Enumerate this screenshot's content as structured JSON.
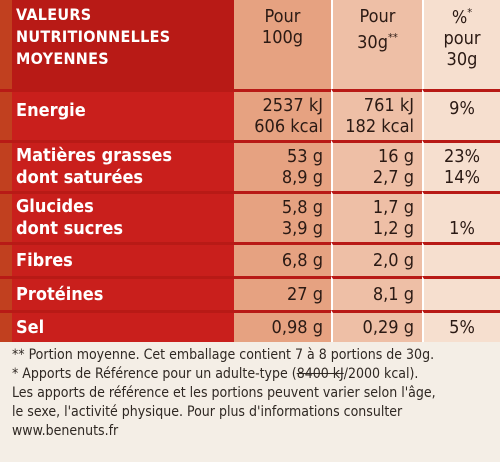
{
  "header": {
    "label_lines": [
      "VALEURS",
      "NUTRITIONNELLES",
      "MOYENNES"
    ],
    "col1": [
      "Pour",
      "100g"
    ],
    "col2": [
      "Pour",
      "30g",
      "**"
    ],
    "col3": [
      "%",
      "*",
      "pour",
      "30g"
    ]
  },
  "rows": [
    {
      "labels": [
        "Energie"
      ],
      "col1": [
        "2537 kJ",
        "606 kcal"
      ],
      "col2": [
        "761 kJ",
        "182 kcal"
      ],
      "col3": [
        "9%"
      ]
    },
    {
      "labels": [
        "Matières grasses",
        "dont saturées"
      ],
      "col1": [
        "53 g",
        "8,9 g"
      ],
      "col2": [
        "16 g",
        "2,7 g"
      ],
      "col3": [
        "23%",
        "14%"
      ]
    },
    {
      "labels": [
        "Glucides",
        "dont sucres"
      ],
      "col1": [
        "5,8 g",
        "3,9 g"
      ],
      "col2": [
        "1,7 g",
        "1,2 g"
      ],
      "col3": [
        "",
        "1%"
      ]
    },
    {
      "labels": [
        "Fibres"
      ],
      "col1": [
        "6,8 g"
      ],
      "col2": [
        "2,0 g"
      ],
      "col3": [
        ""
      ]
    },
    {
      "labels": [
        "Protéines"
      ],
      "col1": [
        "27 g"
      ],
      "col2": [
        "8,1 g"
      ],
      "col3": [
        ""
      ]
    },
    {
      "labels": [
        "Sel"
      ],
      "col1": [
        "0,98 g"
      ],
      "col2": [
        "0,29 g"
      ],
      "col3": [
        "5%"
      ]
    }
  ],
  "footnotes": {
    "line1": "** Portion moyenne. Cet emballage contient 7 à 8 portions de 30g.",
    "line2_a": "* Apports de Référence pour un adulte-type (",
    "line2_strike": "8400 kJ",
    "line2_b": "/2000 kcal).",
    "line3": "Les apports de référence et les portions peuvent varier selon l'âge,",
    "line4": "le sexe, l'activité physique. Pour plus d'informations consulter",
    "line5": "www.benenuts.fr"
  },
  "colors": {
    "label_red": "#c91f1c",
    "col1": "#e6a281",
    "col2": "#eebfa6",
    "col3": "#f6dfcf"
  }
}
